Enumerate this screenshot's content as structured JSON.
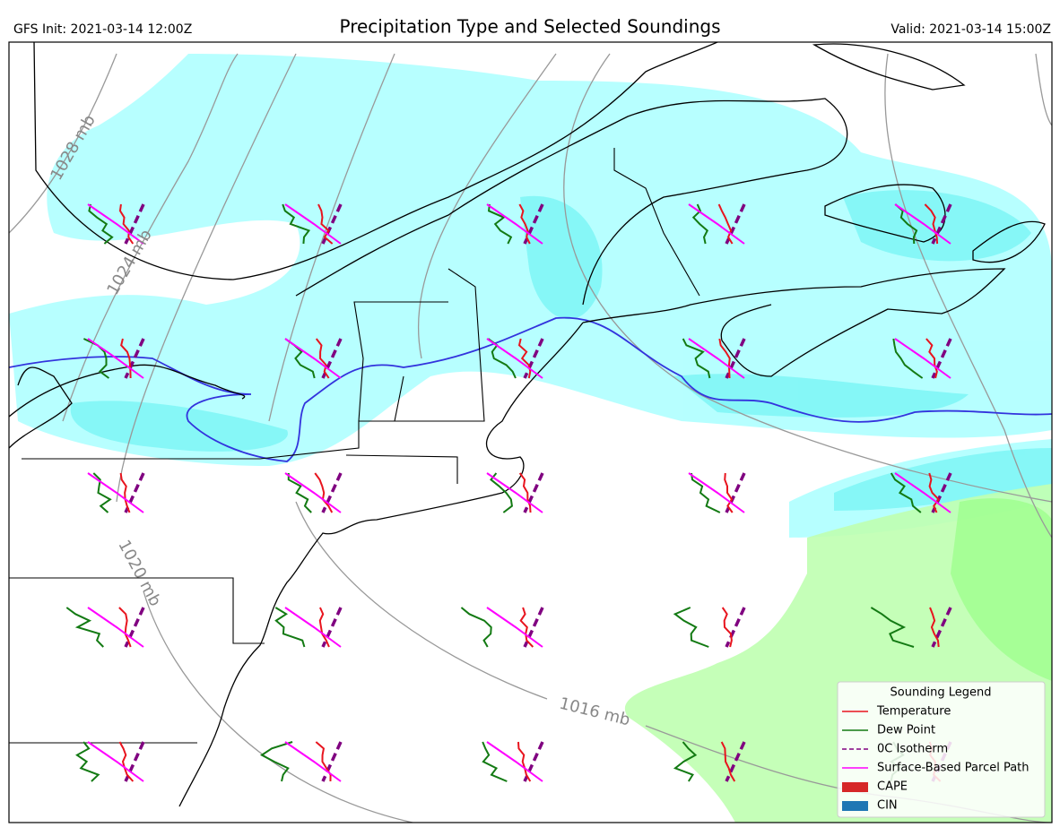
{
  "header": {
    "init": "GFS Init: 2021-03-14 12:00Z",
    "title": "Precipitation Type and Selected Soundings",
    "valid": "Valid: 2021-03-14 15:00Z"
  },
  "map": {
    "contour_labels": [
      "1028 mb",
      "1024 mb",
      "1020 mb",
      "1016 mb"
    ]
  },
  "legend": {
    "title": "Sounding Legend",
    "items": [
      {
        "label": "Temperature",
        "color": "#e8141e"
      },
      {
        "label": "Dew Point",
        "color": "#137a13"
      },
      {
        "label": "0C Isotherm",
        "color": "#800080"
      },
      {
        "label": "Surface-Based Parcel Path",
        "color": "#ff00ff"
      },
      {
        "label": "CAPE",
        "color": "#d62728"
      },
      {
        "label": "CIN",
        "color": "#1f77b4"
      }
    ]
  }
}
